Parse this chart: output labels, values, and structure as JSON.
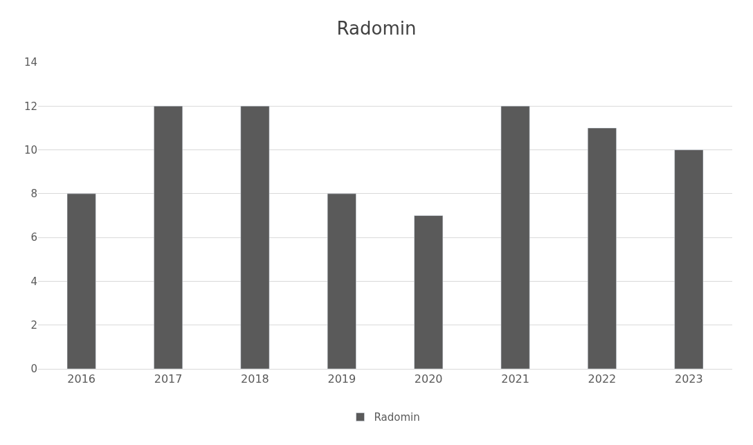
{
  "chart_data": {
    "type": "bar",
    "title": "Radomin",
    "categories": [
      "2016",
      "2017",
      "2018",
      "2019",
      "2020",
      "2021",
      "2022",
      "2023"
    ],
    "series": [
      {
        "name": "Radomin",
        "color": "#5a5a5a",
        "values": [
          8,
          12,
          12,
          8,
          7,
          12,
          11,
          10
        ]
      }
    ],
    "ylim": [
      0,
      14
    ],
    "yticks": [
      0,
      2,
      4,
      6,
      8,
      10,
      12,
      14
    ],
    "grid": "y",
    "legend": "bottom"
  }
}
